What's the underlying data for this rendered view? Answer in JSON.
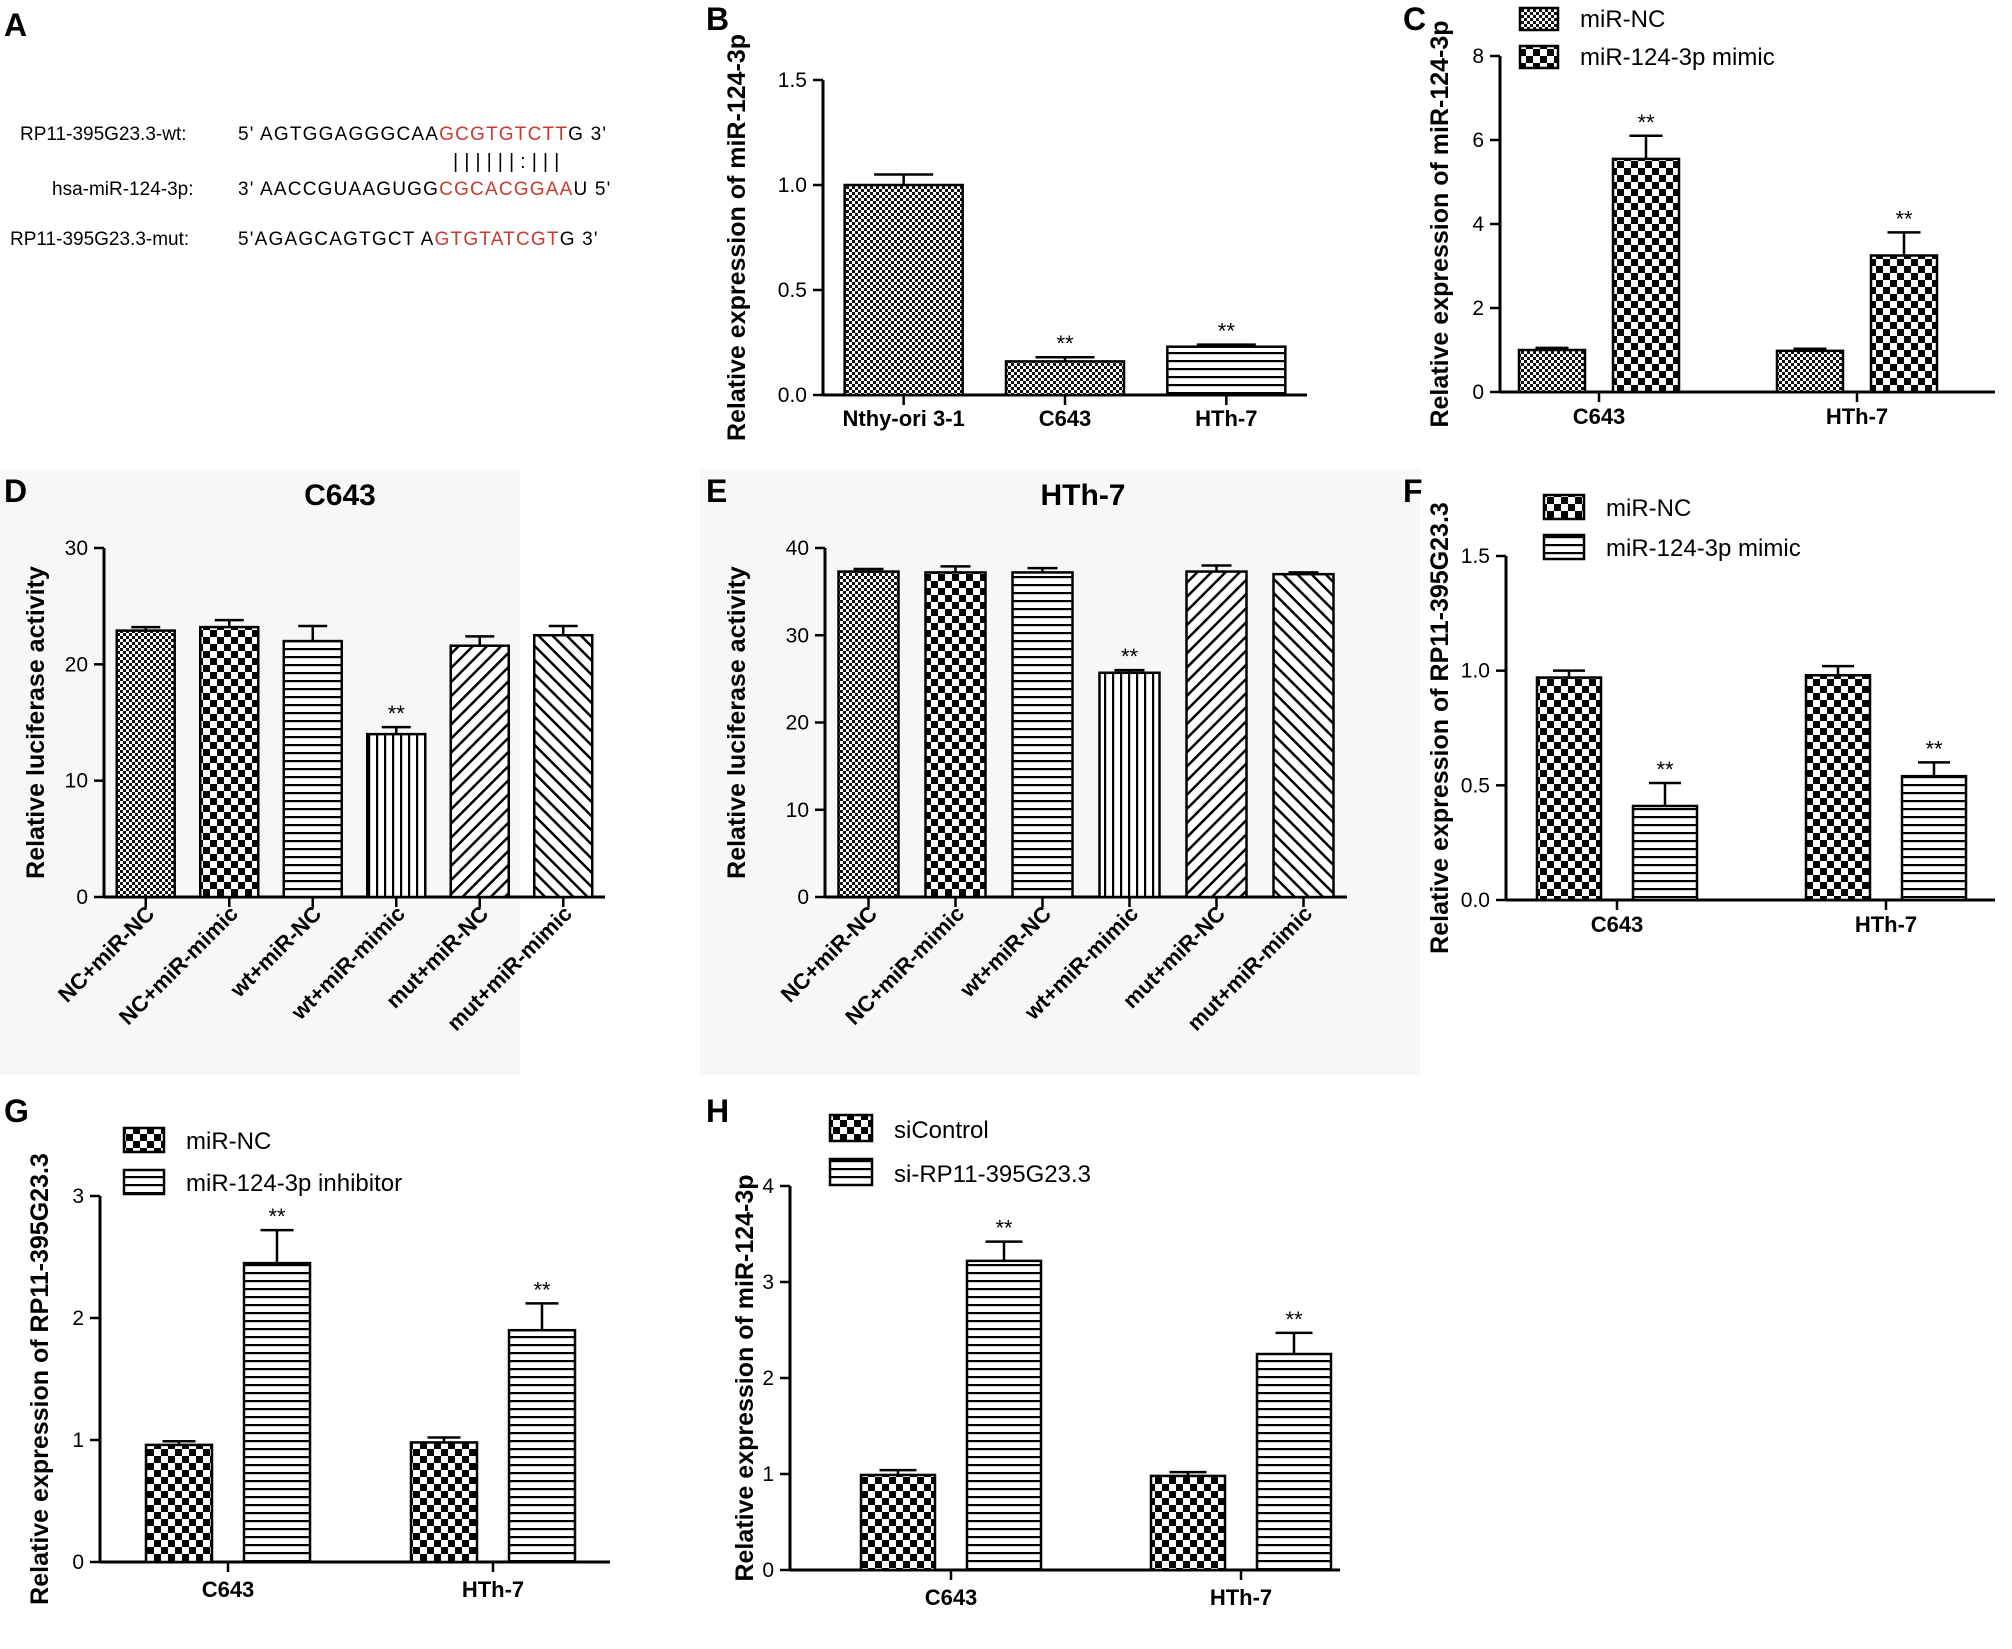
{
  "panel_letters": {
    "a": "A",
    "b": "B",
    "c": "C",
    "d": "D",
    "e": "E",
    "f": "F",
    "g": "G",
    "h": "H"
  },
  "sequence_panel": {
    "row1_label": "RP11-395G23.3-wt:",
    "row1_pre": "5' AGTGGAGGGCAA",
    "row1_hl": "GCGTGTCTT",
    "row1_post": "G 3'",
    "pairing": "||||||:|||",
    "row2_label": "hsa-miR-124-3p:",
    "row2_pre": "3' AACCGUAAGUGG",
    "row2_hl": "CGCACGGAA",
    "row2_post": "U 5'",
    "row3_label": "RP11-395G23.3-mut:",
    "row3_pre": "5'AGAGCAGTGCT A",
    "row3_hl": "GTGTATCGT",
    "row3_post": "G 3'",
    "highlight_color": "#c83a2e"
  },
  "chart_data": [
    {
      "id": "B",
      "type": "bar",
      "title": "",
      "ylabel": "Relative expression of miR-124-3p",
      "xlabel": "",
      "ylim": [
        0,
        1.5
      ],
      "yticks": [
        0.0,
        0.5,
        1.0,
        1.5
      ],
      "ytick_labels": [
        "0.0",
        "0.5",
        "1.0",
        "1.5"
      ],
      "categories": [
        "Nthy-ori 3-1",
        "C643",
        "HTh-7"
      ],
      "series": [
        {
          "name": "",
          "patterns": [
            "fine-check",
            "fine-check",
            "hlines"
          ],
          "values": [
            1.0,
            0.16,
            0.23
          ],
          "errors": [
            0.05,
            0.02,
            0.01
          ],
          "sig": [
            "",
            "**",
            "**"
          ]
        }
      ],
      "legend": []
    },
    {
      "id": "C",
      "type": "bar",
      "title": "",
      "ylabel": "Relative expression of miR-124-3p",
      "xlabel": "",
      "ylim": [
        0,
        8
      ],
      "yticks": [
        0,
        2,
        4,
        6,
        8
      ],
      "ytick_labels": [
        "0",
        "2",
        "4",
        "6",
        "8"
      ],
      "categories": [
        "C643",
        "HTh-7"
      ],
      "series": [
        {
          "name": "miR-NC",
          "pattern": "fine-check",
          "values": [
            1.0,
            0.98
          ],
          "errors": [
            0.05,
            0.05
          ],
          "sig": [
            "",
            ""
          ]
        },
        {
          "name": "miR-124-3p mimic",
          "pattern": "big-check",
          "values": [
            5.55,
            3.25
          ],
          "errors": [
            0.55,
            0.55
          ],
          "sig": [
            "**",
            "**"
          ]
        }
      ],
      "legend": [
        "miR-NC",
        "miR-124-3p mimic"
      ]
    },
    {
      "id": "D",
      "type": "bar",
      "title": "C643",
      "ylabel": "Relative luciferase activity",
      "xlabel": "",
      "ylim": [
        0,
        30
      ],
      "yticks": [
        0,
        10,
        20,
        30
      ],
      "ytick_labels": [
        "0",
        "10",
        "20",
        "30"
      ],
      "categories": [
        "NC+miR-NC",
        "NC+miR-mimic",
        "wt+miR-NC",
        "wt+miR-mimic",
        "mut+miR-NC",
        "mut+miR-mimic"
      ],
      "series": [
        {
          "name": "",
          "patterns": [
            "fine-check",
            "big-check",
            "hlines",
            "vlines",
            "diag-right",
            "diag-left"
          ],
          "values": [
            22.9,
            23.2,
            22.0,
            14.0,
            21.6,
            22.5
          ],
          "errors": [
            0.3,
            0.6,
            1.3,
            0.6,
            0.8,
            0.8
          ],
          "sig": [
            "",
            "",
            "",
            "**",
            "",
            ""
          ]
        }
      ],
      "legend": []
    },
    {
      "id": "E",
      "type": "bar",
      "title": "HTh-7",
      "ylabel": "Relative luciferase activity",
      "xlabel": "",
      "ylim": [
        0,
        40
      ],
      "yticks": [
        0,
        10,
        20,
        30,
        40
      ],
      "ytick_labels": [
        "0",
        "10",
        "20",
        "30",
        "40"
      ],
      "categories": [
        "NC+miR-NC",
        "NC+miR-mimic",
        "wt+miR-NC",
        "wt+miR-mimic",
        "mut+miR-NC",
        "mut+miR-mimic"
      ],
      "series": [
        {
          "name": "",
          "patterns": [
            "fine-check",
            "big-check",
            "hlines",
            "vlines",
            "diag-right",
            "diag-left"
          ],
          "values": [
            37.3,
            37.2,
            37.2,
            25.7,
            37.3,
            37.0
          ],
          "errors": [
            0.3,
            0.7,
            0.5,
            0.3,
            0.7,
            0.2
          ],
          "sig": [
            "",
            "",
            "",
            "**",
            "",
            ""
          ]
        }
      ],
      "legend": []
    },
    {
      "id": "F",
      "type": "bar",
      "title": "",
      "ylabel": "Relative expression of RP11-395G23.3",
      "xlabel": "",
      "ylim": [
        0,
        1.5
      ],
      "yticks": [
        0.0,
        0.5,
        1.0,
        1.5
      ],
      "ytick_labels": [
        "0.0",
        "0.5",
        "1.0",
        "1.5"
      ],
      "categories": [
        "C643",
        "HTh-7"
      ],
      "series": [
        {
          "name": "miR-NC",
          "pattern": "big-check",
          "values": [
            0.97,
            0.98
          ],
          "errors": [
            0.03,
            0.04
          ],
          "sig": [
            "",
            ""
          ]
        },
        {
          "name": "miR-124-3p mimic",
          "pattern": "hlines",
          "values": [
            0.41,
            0.54
          ],
          "errors": [
            0.1,
            0.06
          ],
          "sig": [
            "**",
            "**"
          ]
        }
      ],
      "legend": [
        "miR-NC",
        "miR-124-3p mimic"
      ]
    },
    {
      "id": "G",
      "type": "bar",
      "title": "",
      "ylabel": "Relative expression of RP11-395G23.3",
      "xlabel": "",
      "ylim": [
        0,
        3
      ],
      "yticks": [
        0,
        1,
        2,
        3
      ],
      "ytick_labels": [
        "0",
        "1",
        "2",
        "3"
      ],
      "categories": [
        "C643",
        "HTh-7"
      ],
      "series": [
        {
          "name": "miR-NC",
          "pattern": "big-check",
          "values": [
            0.96,
            0.98
          ],
          "errors": [
            0.03,
            0.04
          ],
          "sig": [
            "",
            ""
          ]
        },
        {
          "name": "miR-124-3p inhibitor",
          "pattern": "hlines",
          "values": [
            2.45,
            1.9
          ],
          "errors": [
            0.27,
            0.22
          ],
          "sig": [
            "**",
            "**"
          ]
        }
      ],
      "legend": [
        "miR-NC",
        "miR-124-3p inhibitor"
      ]
    },
    {
      "id": "H",
      "type": "bar",
      "title": "",
      "ylabel": "Relative expression of miR-124-3p",
      "xlabel": "",
      "ylim": [
        0,
        4
      ],
      "yticks": [
        0,
        1,
        2,
        3,
        4
      ],
      "ytick_labels": [
        "0",
        "1",
        "2",
        "3",
        "4"
      ],
      "categories": [
        "C643",
        "HTh-7"
      ],
      "series": [
        {
          "name": "siControl",
          "pattern": "big-check",
          "values": [
            0.99,
            0.98
          ],
          "errors": [
            0.05,
            0.04
          ],
          "sig": [
            "",
            ""
          ]
        },
        {
          "name": "si-RP11-395G23.3",
          "pattern": "hlines",
          "values": [
            3.22,
            2.25
          ],
          "errors": [
            0.2,
            0.22
          ],
          "sig": [
            "**",
            "**"
          ]
        }
      ],
      "legend": [
        "siControl",
        "si-RP11-395G23.3"
      ]
    }
  ]
}
